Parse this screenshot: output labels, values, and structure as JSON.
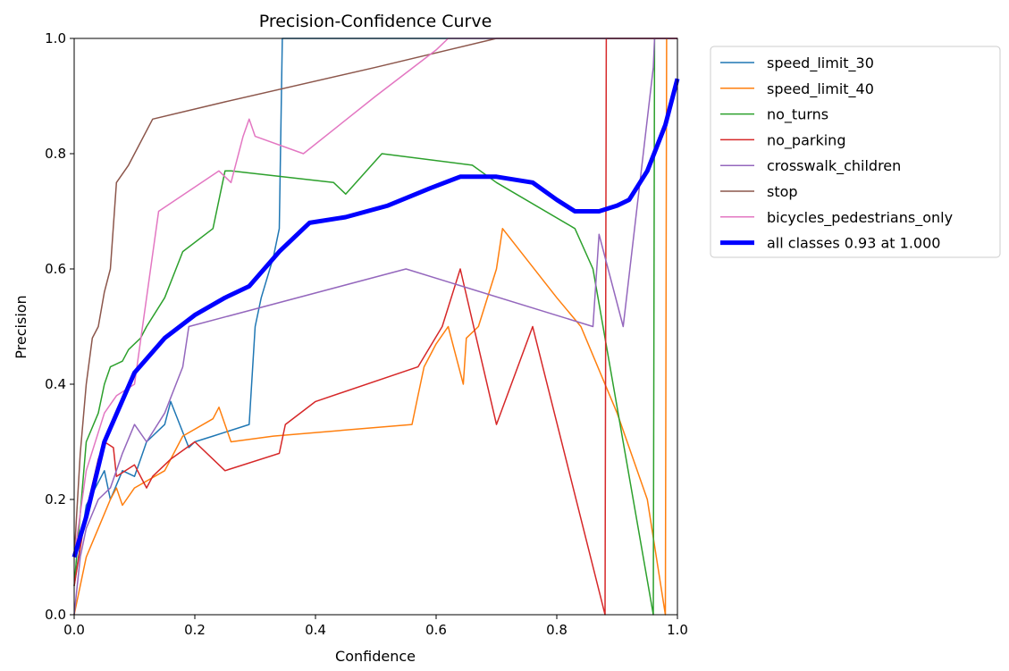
{
  "chart_data": {
    "type": "line",
    "title": "Precision-Confidence Curve",
    "xlabel": "Confidence",
    "ylabel": "Precision",
    "xlim": [
      0,
      1
    ],
    "ylim": [
      0,
      1
    ],
    "xticks": [
      0.0,
      0.2,
      0.4,
      0.6,
      0.8,
      1.0
    ],
    "yticks": [
      0.0,
      0.2,
      0.4,
      0.6,
      0.8,
      1.0
    ],
    "xtick_labels": [
      "0.0",
      "0.2",
      "0.4",
      "0.6",
      "0.8",
      "1.0"
    ],
    "ytick_labels": [
      "0.0",
      "0.2",
      "0.4",
      "0.6",
      "0.8",
      "1.0"
    ],
    "legend_position": "outside-upper-right",
    "series": [
      {
        "name": "speed_limit_30",
        "color": "#1f77b4",
        "thick": false,
        "x": [
          0.0,
          0.02,
          0.05,
          0.06,
          0.08,
          0.1,
          0.11,
          0.12,
          0.15,
          0.16,
          0.19,
          0.2,
          0.23,
          0.29,
          0.3,
          0.31,
          0.33,
          0.34,
          0.345,
          1.0
        ],
        "y": [
          0.05,
          0.19,
          0.25,
          0.2,
          0.25,
          0.24,
          0.27,
          0.3,
          0.33,
          0.37,
          0.29,
          0.3,
          0.31,
          0.33,
          0.5,
          0.55,
          0.62,
          0.67,
          1.0,
          1.0
        ]
      },
      {
        "name": "speed_limit_40",
        "color": "#ff7f0e",
        "thick": false,
        "x": [
          0.0,
          0.02,
          0.04,
          0.06,
          0.07,
          0.08,
          0.1,
          0.15,
          0.18,
          0.23,
          0.24,
          0.26,
          0.33,
          0.56,
          0.57,
          0.58,
          0.6,
          0.62,
          0.645,
          0.65,
          0.67,
          0.7,
          0.71,
          0.8,
          0.84,
          0.9,
          0.95,
          0.98,
          0.982,
          1.0
        ],
        "y": [
          0.0,
          0.1,
          0.15,
          0.2,
          0.22,
          0.19,
          0.22,
          0.25,
          0.31,
          0.34,
          0.36,
          0.3,
          0.31,
          0.33,
          0.38,
          0.43,
          0.47,
          0.5,
          0.4,
          0.48,
          0.5,
          0.6,
          0.67,
          0.55,
          0.5,
          0.35,
          0.2,
          0.0,
          1.0,
          1.0
        ]
      },
      {
        "name": "no_turns",
        "color": "#2ca02c",
        "thick": false,
        "x": [
          0.0,
          0.02,
          0.04,
          0.05,
          0.06,
          0.08,
          0.09,
          0.11,
          0.12,
          0.15,
          0.18,
          0.23,
          0.25,
          0.26,
          0.43,
          0.45,
          0.51,
          0.66,
          0.7,
          0.83,
          0.86,
          0.96,
          0.962,
          1.0
        ],
        "y": [
          0.05,
          0.3,
          0.35,
          0.4,
          0.43,
          0.44,
          0.46,
          0.48,
          0.5,
          0.55,
          0.63,
          0.67,
          0.77,
          0.77,
          0.75,
          0.73,
          0.8,
          0.78,
          0.75,
          0.67,
          0.6,
          0.0,
          1.0,
          1.0
        ]
      },
      {
        "name": "no_parking",
        "color": "#d62728",
        "thick": false,
        "x": [
          0.0,
          0.02,
          0.04,
          0.05,
          0.065,
          0.07,
          0.1,
          0.12,
          0.13,
          0.16,
          0.2,
          0.25,
          0.34,
          0.35,
          0.4,
          0.57,
          0.61,
          0.64,
          0.7,
          0.76,
          0.88,
          0.882,
          1.0
        ],
        "y": [
          0.05,
          0.18,
          0.27,
          0.3,
          0.29,
          0.24,
          0.26,
          0.22,
          0.24,
          0.27,
          0.3,
          0.25,
          0.28,
          0.33,
          0.37,
          0.43,
          0.5,
          0.6,
          0.33,
          0.5,
          0.0,
          1.0,
          1.0
        ]
      },
      {
        "name": "crosswalk_children",
        "color": "#9467bd",
        "thick": false,
        "x": [
          0.0,
          0.01,
          0.02,
          0.04,
          0.06,
          0.08,
          0.1,
          0.12,
          0.15,
          0.18,
          0.19,
          0.55,
          0.86,
          0.87,
          0.91,
          0.96,
          0.962,
          1.0
        ],
        "y": [
          0.0,
          0.1,
          0.15,
          0.2,
          0.22,
          0.28,
          0.33,
          0.3,
          0.35,
          0.43,
          0.5,
          0.6,
          0.5,
          0.66,
          0.5,
          0.95,
          1.0,
          1.0
        ]
      },
      {
        "name": "stop",
        "color": "#8c564b",
        "thick": false,
        "x": [
          0.0,
          0.01,
          0.02,
          0.03,
          0.04,
          0.05,
          0.06,
          0.07,
          0.09,
          0.13,
          0.25,
          0.5,
          0.7,
          1.0
        ],
        "y": [
          0.1,
          0.28,
          0.4,
          0.48,
          0.5,
          0.56,
          0.6,
          0.75,
          0.78,
          0.86,
          0.89,
          0.95,
          1.0,
          1.0
        ]
      },
      {
        "name": "bicycles_pedestrians_only",
        "color": "#e377c2",
        "thick": false,
        "x": [
          0.0,
          0.02,
          0.05,
          0.07,
          0.1,
          0.12,
          0.14,
          0.24,
          0.26,
          0.28,
          0.29,
          0.3,
          0.38,
          0.5,
          0.6,
          0.62,
          1.0
        ],
        "y": [
          0.1,
          0.25,
          0.35,
          0.38,
          0.4,
          0.55,
          0.7,
          0.77,
          0.75,
          0.83,
          0.86,
          0.83,
          0.8,
          0.9,
          0.98,
          1.0,
          1.0
        ]
      },
      {
        "name": "all classes 0.93 at 1.000",
        "color": "#0000ff",
        "thick": true,
        "x": [
          0.0,
          0.02,
          0.05,
          0.1,
          0.15,
          0.2,
          0.25,
          0.29,
          0.34,
          0.39,
          0.45,
          0.52,
          0.59,
          0.64,
          0.7,
          0.76,
          0.8,
          0.83,
          0.87,
          0.9,
          0.92,
          0.95,
          0.98,
          1.0
        ],
        "y": [
          0.1,
          0.17,
          0.3,
          0.42,
          0.48,
          0.52,
          0.55,
          0.57,
          0.63,
          0.68,
          0.69,
          0.71,
          0.74,
          0.76,
          0.76,
          0.75,
          0.72,
          0.7,
          0.7,
          0.71,
          0.72,
          0.77,
          0.85,
          0.93
        ]
      }
    ]
  }
}
